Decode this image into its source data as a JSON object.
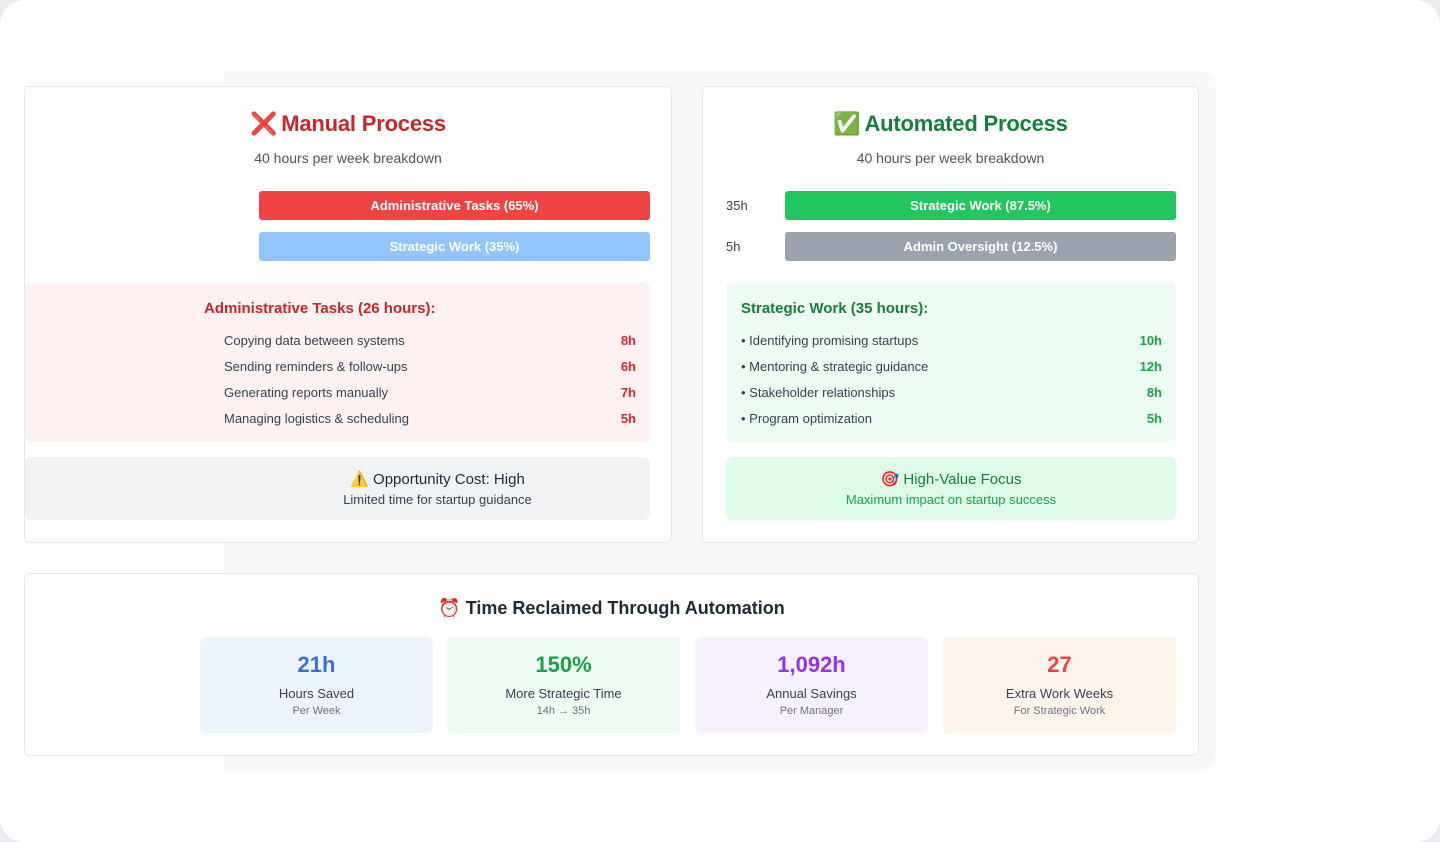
{
  "manual": {
    "icon": "cross-mark-icon",
    "icon_glyph": "❌",
    "title": "Manual Process",
    "subtitle": "40 hours per week breakdown",
    "bars": [
      {
        "label": "Administrative Tasks (65%)",
        "color": "#ef4444",
        "share": 0.65
      },
      {
        "label": "Strategic Work (35%)",
        "color": "#93c5fd",
        "share": 0.35
      }
    ],
    "detail": {
      "heading": "Administrative Tasks (26 hours):",
      "items": [
        {
          "text": "Copying data between systems",
          "hours": "8h"
        },
        {
          "text": "Sending reminders & follow-ups",
          "hours": "6h"
        },
        {
          "text": "Generating reports manually",
          "hours": "7h"
        },
        {
          "text": "Managing logistics & scheduling",
          "hours": "5h"
        }
      ]
    },
    "note": {
      "icon": "warning-icon",
      "icon_glyph": "⚠️",
      "line1": "Opportunity Cost: High",
      "line2": "Limited time for startup guidance"
    }
  },
  "automated": {
    "icon": "check-mark-icon",
    "icon_glyph": "✅",
    "title": "Automated Process",
    "subtitle": "40 hours per week breakdown",
    "bars": [
      {
        "hours": "35h",
        "label": "Strategic Work (87.5%)",
        "color": "#22c55e",
        "share": 0.875
      },
      {
        "hours": "5h",
        "label": "Admin Oversight (12.5%)",
        "color": "#9ca3af",
        "share": 0.125
      }
    ],
    "detail": {
      "heading": "Strategic Work (35 hours):",
      "items": [
        {
          "text": "• Identifying promising startups",
          "hours": "10h"
        },
        {
          "text": "• Mentoring & strategic guidance",
          "hours": "12h"
        },
        {
          "text": "• Stakeholder relationships",
          "hours": "8h"
        },
        {
          "text": "• Program optimization",
          "hours": "5h"
        }
      ]
    },
    "note": {
      "icon": "target-icon",
      "icon_glyph": "🎯",
      "line1": "High-Value Focus",
      "line2": "Maximum impact on startup success"
    }
  },
  "summary": {
    "icon": "alarm-clock-icon",
    "icon_glyph": "⏰",
    "title": "Time Reclaimed Through Automation",
    "stats": [
      {
        "value": "21h",
        "label": "Hours Saved",
        "sub": "Per Week",
        "color": "#3b6fd8",
        "bg": "#eef4ff"
      },
      {
        "value": "150%",
        "label": "More Strategic Time",
        "sub": "14h → 35h",
        "color": "#16a34a",
        "bg": "#eefaf2"
      },
      {
        "value": "1,092h",
        "label": "Annual Savings",
        "sub": "Per Manager",
        "color": "#9333ea",
        "bg": "#f7f1fe"
      },
      {
        "value": "27",
        "label": "Extra Work Weeks",
        "sub": "For Strategic Work",
        "color": "#ef4444",
        "bg": "#fff4ec"
      }
    ]
  },
  "colors": {
    "manual_accent": "#c62828",
    "auto_accent": "#15803d",
    "manual_detail_bg": "#fdf1f1",
    "auto_detail_bg": "#eefbf2",
    "manual_note_bg": "#f1f2f4",
    "auto_note_bg": "#dcfce7"
  }
}
